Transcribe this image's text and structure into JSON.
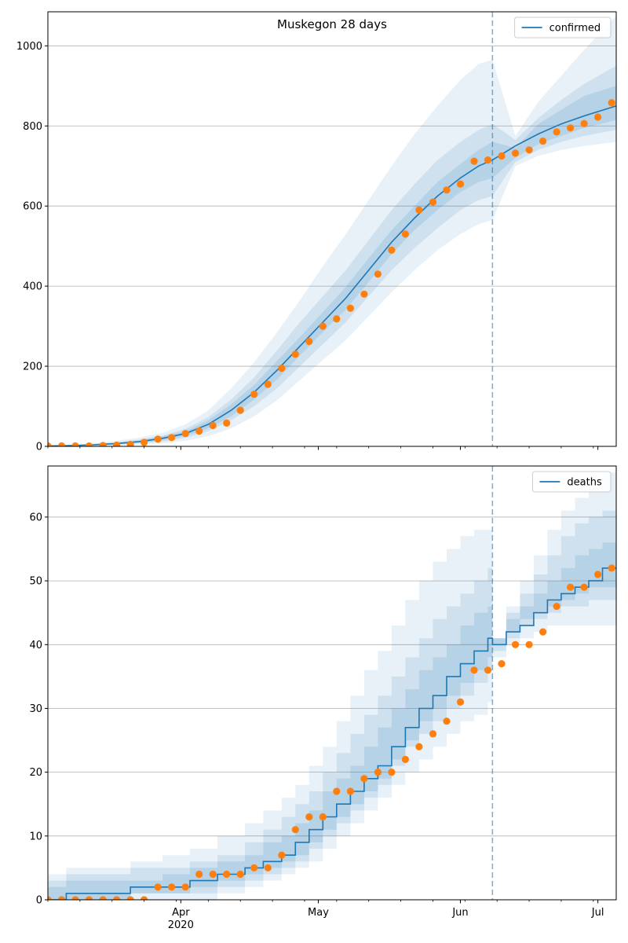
{
  "chart_data": [
    {
      "type": "line",
      "title": "Muskegon 28 days",
      "xlabel": "",
      "ylabel": "",
      "xlim": [
        "2020-03-03",
        "2020-07-05"
      ],
      "ylim": [
        0,
        1085
      ],
      "yticks": [
        0,
        200,
        400,
        600,
        800,
        1000
      ],
      "xtick_labels": [
        {
          "date": "2020-04-01",
          "label": "Apr",
          "sublabel": "2020"
        },
        {
          "date": "2020-05-01",
          "label": "May",
          "sublabel": ""
        },
        {
          "date": "2020-06-01",
          "label": "Jun",
          "sublabel": ""
        },
        {
          "date": "2020-07-01",
          "label": "Jul",
          "sublabel": ""
        }
      ],
      "grid": "y",
      "legend_position": "top-right",
      "forecast_start": "2020-06-08",
      "series": [
        {
          "name": "confirmed",
          "kind": "model-line",
          "color": "#1f77b4",
          "x": [
            "2020-03-03",
            "2020-03-08",
            "2020-03-13",
            "2020-03-18",
            "2020-03-23",
            "2020-03-28",
            "2020-04-02",
            "2020-04-07",
            "2020-04-12",
            "2020-04-17",
            "2020-04-22",
            "2020-04-27",
            "2020-05-02",
            "2020-05-07",
            "2020-05-12",
            "2020-05-17",
            "2020-05-22",
            "2020-05-27",
            "2020-06-01",
            "2020-06-05",
            "2020-06-08",
            "2020-06-13",
            "2020-06-18",
            "2020-06-23",
            "2020-06-28",
            "2020-07-05"
          ],
          "y": [
            1,
            2,
            4,
            7,
            12,
            20,
            32,
            55,
            90,
            135,
            190,
            250,
            310,
            370,
            440,
            510,
            570,
            625,
            670,
            700,
            715,
            750,
            780,
            805,
            825,
            850
          ],
          "bands": [
            {
              "opacity": 0.1,
              "lower": [
                0,
                0,
                1,
                2,
                4,
                8,
                14,
                25,
                45,
                75,
                115,
                165,
                215,
                265,
                325,
                385,
                440,
                490,
                530,
                555,
                565,
                700,
                725,
                740,
                750,
                760
              ],
              "upper": [
                2,
                4,
                8,
                14,
                22,
                34,
                55,
                90,
                145,
                210,
                285,
                365,
                450,
                530,
                615,
                700,
                780,
                850,
                915,
                955,
                965,
                775,
                860,
                925,
                990,
                1075
              ]
            },
            {
              "opacity": 0.12,
              "lower": [
                0,
                1,
                2,
                4,
                7,
                12,
                21,
                38,
                65,
                100,
                145,
                200,
                255,
                310,
                375,
                440,
                495,
                545,
                590,
                615,
                625,
                710,
                740,
                760,
                775,
                790
              ],
              "upper": [
                2,
                3,
                6,
                10,
                17,
                27,
                44,
                73,
                117,
                172,
                240,
                310,
                375,
                440,
                515,
                590,
                655,
                715,
                760,
                790,
                805,
                765,
                820,
                865,
                905,
                950
              ]
            },
            {
              "opacity": 0.14,
              "lower": [
                1,
                1,
                3,
                5,
                9,
                15,
                26,
                45,
                75,
                117,
                167,
                227,
                285,
                342,
                410,
                480,
                540,
                590,
                635,
                660,
                670,
                720,
                755,
                775,
                795,
                815
              ],
              "upper": [
                2,
                3,
                5,
                9,
                15,
                25,
                38,
                65,
                105,
                153,
                213,
                273,
                335,
                398,
                470,
                540,
                600,
                660,
                705,
                740,
                760,
                745,
                805,
                840,
                875,
                900
              ]
            }
          ]
        },
        {
          "name": "",
          "kind": "observed-points",
          "color": "#ff7f0e",
          "x": [
            "2020-03-03",
            "2020-03-06",
            "2020-03-09",
            "2020-03-12",
            "2020-03-15",
            "2020-03-18",
            "2020-03-21",
            "2020-03-24",
            "2020-03-27",
            "2020-03-30",
            "2020-04-02",
            "2020-04-05",
            "2020-04-08",
            "2020-04-11",
            "2020-04-14",
            "2020-04-17",
            "2020-04-20",
            "2020-04-23",
            "2020-04-26",
            "2020-04-29",
            "2020-05-02",
            "2020-05-05",
            "2020-05-08",
            "2020-05-11",
            "2020-05-14",
            "2020-05-17",
            "2020-05-20",
            "2020-05-23",
            "2020-05-26",
            "2020-05-29",
            "2020-06-01",
            "2020-06-04",
            "2020-06-07",
            "2020-06-10",
            "2020-06-13",
            "2020-06-16",
            "2020-06-19",
            "2020-06-22",
            "2020-06-25",
            "2020-06-28",
            "2020-07-01",
            "2020-07-04"
          ],
          "y": [
            1,
            1,
            1,
            1,
            2,
            3,
            5,
            10,
            18,
            22,
            32,
            38,
            52,
            58,
            90,
            130,
            155,
            195,
            230,
            262,
            300,
            318,
            345,
            380,
            430,
            490,
            530,
            590,
            610,
            640,
            655,
            712,
            715,
            725,
            732,
            740,
            762,
            785,
            795,
            806,
            822,
            858
          ]
        }
      ]
    },
    {
      "type": "line",
      "title": "",
      "xlabel": "",
      "ylabel": "",
      "xlim": [
        "2020-03-03",
        "2020-07-05"
      ],
      "ylim": [
        0,
        68
      ],
      "yticks": [
        0,
        10,
        20,
        30,
        40,
        50,
        60
      ],
      "xtick_labels": [
        {
          "date": "2020-04-01",
          "label": "Apr",
          "sublabel": "2020"
        },
        {
          "date": "2020-05-01",
          "label": "May",
          "sublabel": ""
        },
        {
          "date": "2020-06-01",
          "label": "Jun",
          "sublabel": ""
        },
        {
          "date": "2020-07-01",
          "label": "Jul",
          "sublabel": ""
        }
      ],
      "grid": "y",
      "legend_position": "top-right",
      "forecast_start": "2020-06-08",
      "series": [
        {
          "name": "deaths",
          "kind": "model-step",
          "color": "#1f77b4",
          "x": [
            "2020-03-03",
            "2020-03-07",
            "2020-03-21",
            "2020-03-28",
            "2020-04-03",
            "2020-04-09",
            "2020-04-15",
            "2020-04-19",
            "2020-04-23",
            "2020-04-26",
            "2020-04-29",
            "2020-05-02",
            "2020-05-05",
            "2020-05-08",
            "2020-05-11",
            "2020-05-14",
            "2020-05-17",
            "2020-05-20",
            "2020-05-23",
            "2020-05-26",
            "2020-05-29",
            "2020-06-01",
            "2020-06-04",
            "2020-06-07",
            "2020-06-08",
            "2020-06-11",
            "2020-06-14",
            "2020-06-17",
            "2020-06-20",
            "2020-06-23",
            "2020-06-26",
            "2020-06-29",
            "2020-07-02",
            "2020-07-05"
          ],
          "y": [
            0,
            1,
            2,
            2,
            3,
            4,
            5,
            6,
            7,
            9,
            11,
            13,
            15,
            17,
            19,
            21,
            24,
            27,
            30,
            32,
            35,
            37,
            39,
            41,
            40,
            42,
            43,
            45,
            47,
            48,
            49,
            50,
            52,
            52
          ],
          "bands": [
            {
              "opacity": 0.1,
              "lower": [
                0,
                0,
                0,
                0,
                0,
                1,
                2,
                3,
                4,
                5,
                6,
                8,
                10,
                12,
                14,
                16,
                18,
                20,
                22,
                24,
                26,
                28,
                29,
                31,
                38,
                40,
                41,
                42,
                43,
                43,
                43,
                43,
                43,
                43
              ],
              "upper": [
                4,
                5,
                6,
                7,
                8,
                10,
                12,
                14,
                16,
                18,
                21,
                24,
                28,
                32,
                36,
                39,
                43,
                47,
                50,
                53,
                55,
                57,
                58,
                58,
                41,
                46,
                50,
                54,
                58,
                61,
                63,
                65,
                67,
                68
              ]
            },
            {
              "opacity": 0.12,
              "lower": [
                0,
                0,
                1,
                1,
                1,
                2,
                3,
                4,
                5,
                6,
                8,
                10,
                12,
                14,
                16,
                18,
                21,
                24,
                26,
                28,
                30,
                32,
                34,
                36,
                39,
                41,
                43,
                44,
                45,
                46,
                46,
                47,
                47,
                47
              ],
              "upper": [
                3,
                4,
                5,
                5,
                6,
                7,
                9,
                11,
                13,
                15,
                17,
                20,
                23,
                26,
                29,
                32,
                35,
                38,
                41,
                44,
                46,
                48,
                50,
                52,
                41,
                45,
                48,
                51,
                54,
                57,
                59,
                60,
                61,
                62
              ]
            },
            {
              "opacity": 0.14,
              "lower": [
                0,
                0,
                1,
                1,
                2,
                3,
                4,
                5,
                6,
                7,
                9,
                11,
                13,
                15,
                17,
                19,
                22,
                25,
                28,
                30,
                32,
                34,
                36,
                38,
                40,
                42,
                44,
                45,
                46,
                47,
                48,
                49,
                49,
                50
              ],
              "upper": [
                2,
                3,
                3,
                4,
                5,
                6,
                7,
                9,
                10,
                12,
                14,
                17,
                19,
                21,
                24,
                27,
                30,
                33,
                36,
                38,
                40,
                43,
                45,
                46,
                41,
                44,
                46,
                48,
                50,
                52,
                54,
                55,
                56,
                57
              ]
            }
          ]
        },
        {
          "name": "",
          "kind": "observed-points",
          "color": "#ff7f0e",
          "x": [
            "2020-03-03",
            "2020-03-06",
            "2020-03-09",
            "2020-03-12",
            "2020-03-15",
            "2020-03-18",
            "2020-03-21",
            "2020-03-24",
            "2020-03-27",
            "2020-03-30",
            "2020-04-02",
            "2020-04-05",
            "2020-04-08",
            "2020-04-11",
            "2020-04-14",
            "2020-04-17",
            "2020-04-20",
            "2020-04-23",
            "2020-04-26",
            "2020-04-29",
            "2020-05-02",
            "2020-05-05",
            "2020-05-08",
            "2020-05-11",
            "2020-05-14",
            "2020-05-17",
            "2020-05-20",
            "2020-05-23",
            "2020-05-26",
            "2020-05-29",
            "2020-06-01",
            "2020-06-04",
            "2020-06-07",
            "2020-06-10",
            "2020-06-13",
            "2020-06-16",
            "2020-06-19",
            "2020-06-22",
            "2020-06-25",
            "2020-06-28",
            "2020-07-01",
            "2020-07-04"
          ],
          "y": [
            0,
            0,
            0,
            0,
            0,
            0,
            0,
            0,
            2,
            2,
            2,
            4,
            4,
            4,
            4,
            5,
            5,
            7,
            11,
            13,
            13,
            17,
            17,
            19,
            20,
            20,
            22,
            24,
            26,
            28,
            31,
            36,
            36,
            37,
            40,
            40,
            42,
            46,
            49,
            49,
            51,
            52
          ]
        }
      ]
    }
  ]
}
